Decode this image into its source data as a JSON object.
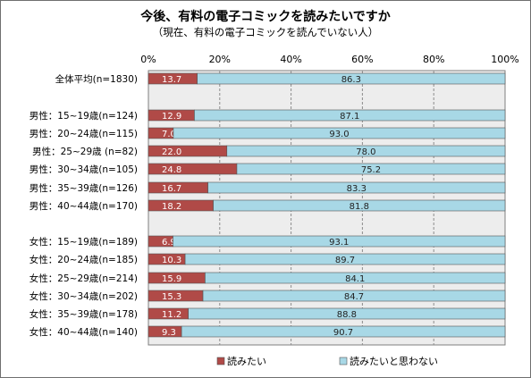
{
  "chart_data": {
    "type": "bar",
    "stacked": true,
    "orientation": "horizontal",
    "title": "今後、有料の電子コミックを読みたいですか",
    "subtitle": "（現在、有料の電子コミックを読んでいない人）",
    "xlim": [
      0,
      100
    ],
    "x_ticks": [
      "0%",
      "20%",
      "40%",
      "60%",
      "80%",
      "100%"
    ],
    "categories": [
      "全体平均(n=1830)",
      "男性：15~19歳(n=124)",
      "男性：20~24歳(n=115)",
      "男性：25~29歳 (n=82)",
      "男性：30~34歳(n=105)",
      "男性：35~39歳(n=126)",
      "男性：40~44歳(n=170)",
      "女性：15~19歳(n=189)",
      "女性：20~24歳(n=185)",
      "女性：25~29歳(n=214)",
      "女性：30~34歳(n=202)",
      "女性：35~39歳(n=178)",
      "女性：40~44歳(n=140)"
    ],
    "series": [
      {
        "name": "読みたい",
        "color": "#b04a47",
        "values": [
          13.7,
          12.9,
          7.0,
          22.0,
          24.8,
          16.7,
          18.2,
          6.9,
          10.3,
          15.9,
          15.3,
          11.2,
          9.3
        ],
        "labels": [
          "13.7",
          "12.9",
          "7.0",
          "22.0",
          "24.8",
          "16.7",
          "18.2",
          "6.9",
          "10.3",
          "15.9",
          "15.3",
          "11.2",
          "9.3"
        ]
      },
      {
        "name": "読みたいと思わない",
        "color": "#a8d8e6",
        "values": [
          86.3,
          87.1,
          93.0,
          78.0,
          75.2,
          83.3,
          81.8,
          93.1,
          89.7,
          84.1,
          84.7,
          88.8,
          90.7
        ],
        "labels": [
          "86.3",
          "87.1",
          "93.0",
          "78.0",
          "75.2",
          "83.3",
          "81.8",
          "93.1",
          "89.7",
          "84.1",
          "84.7",
          "88.8",
          "90.7"
        ]
      }
    ],
    "grid": true,
    "legend_position": "bottom"
  }
}
